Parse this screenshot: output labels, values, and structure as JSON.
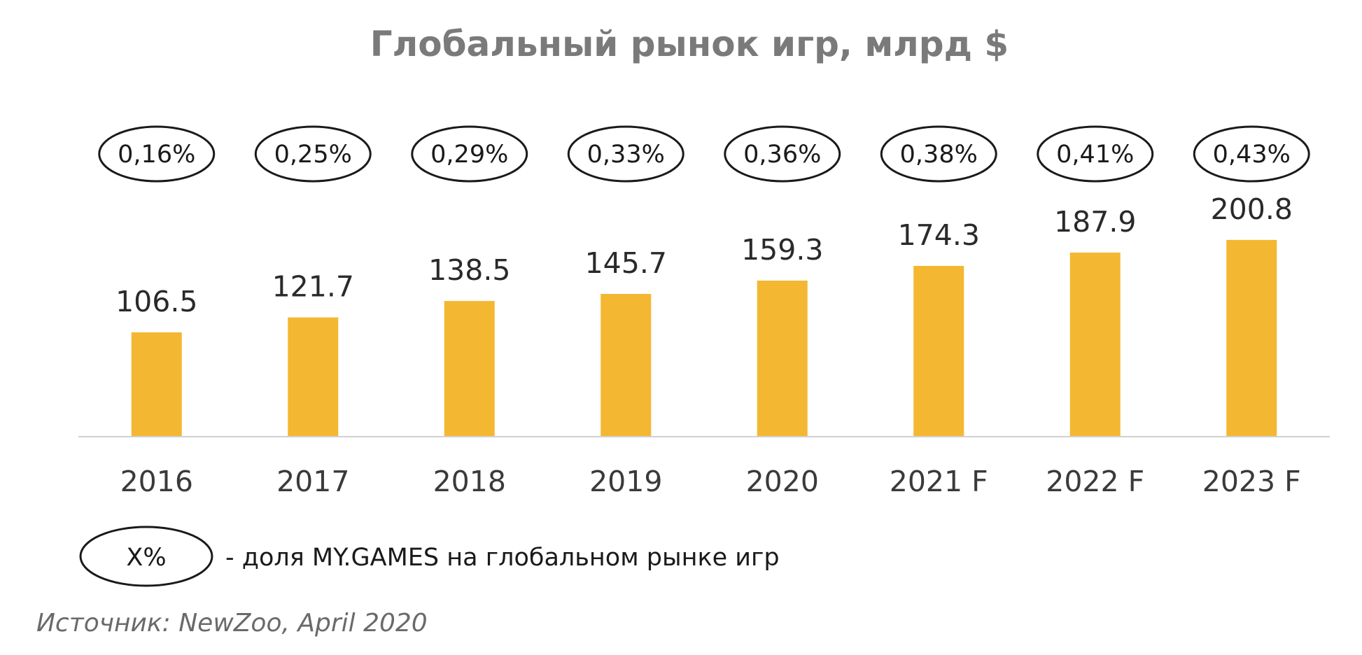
{
  "chart_data": {
    "type": "bar",
    "title": "Глобальный рынок игр, млрд $",
    "categories": [
      "2016",
      "2017",
      "2018",
      "2019",
      "2020",
      "2021 F",
      "2022 F",
      "2023 F"
    ],
    "values": [
      106.5,
      121.7,
      138.5,
      145.7,
      159.3,
      174.3,
      187.9,
      200.8
    ],
    "value_labels": [
      "106.5",
      "121.7",
      "138.5",
      "145.7",
      "159.3",
      "174.3",
      "187.9",
      "200.8"
    ],
    "annotations": [
      "0,16%",
      "0,25%",
      "0,29%",
      "0,33%",
      "0,36%",
      "0,38%",
      "0,41%",
      "0,43%"
    ],
    "ylim": [
      0,
      220
    ],
    "grid": false,
    "bar_color": "#F4B731",
    "axis_color": "#d0d0d0"
  },
  "legend": {
    "marker_text": "X%",
    "description": "- доля MY.GAMES на глобальном рынке игр"
  },
  "source": "Источник: NewZoo, April 2020"
}
